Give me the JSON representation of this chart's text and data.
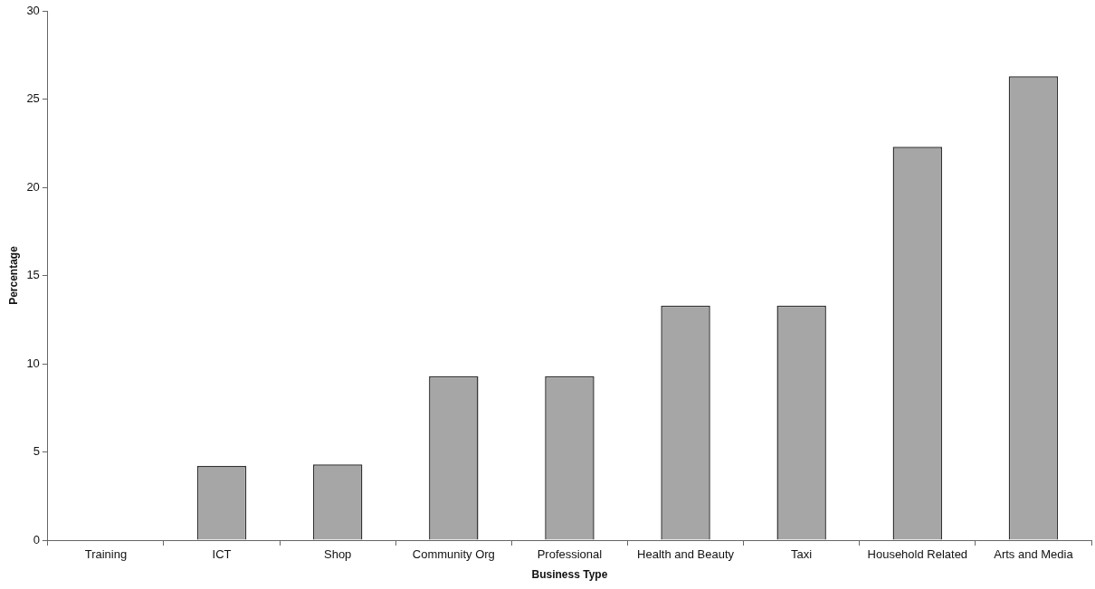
{
  "chart_data": {
    "type": "bar",
    "xlabel": "Business Type",
    "ylabel": "Percentage",
    "categories": [
      "Training",
      "ICT",
      "Shop",
      "Community Org",
      "Professional",
      "Health and Beauty",
      "Taxi",
      "Household Related",
      "Arts and Media"
    ],
    "values": [
      0,
      4.2,
      4.3,
      9.3,
      9.3,
      13.3,
      13.3,
      22.3,
      26.3
    ],
    "color": "#a6a6a6",
    "ylim": [
      0,
      30
    ],
    "yticks": [
      0,
      5,
      10,
      15,
      20,
      25,
      30
    ],
    "grid": false,
    "legend": false
  }
}
